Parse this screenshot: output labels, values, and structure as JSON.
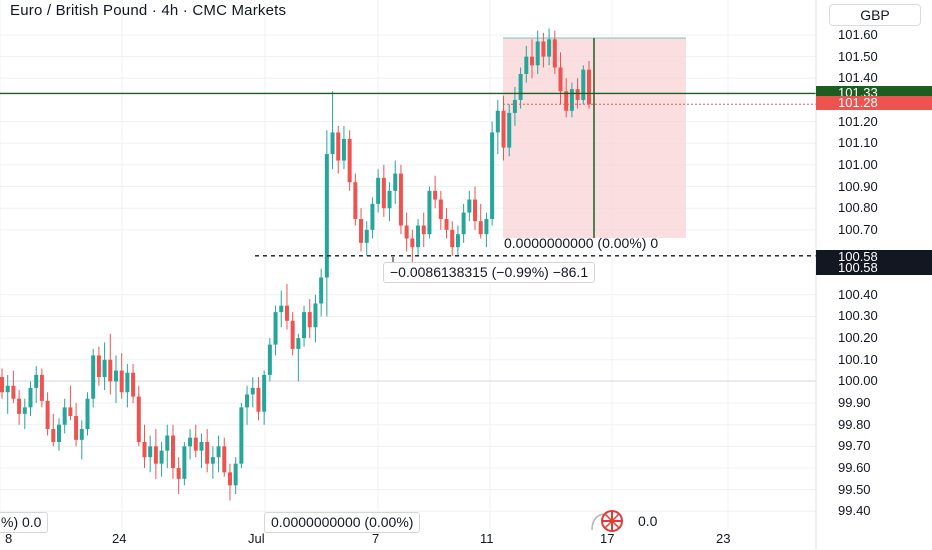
{
  "header": {
    "title": "Euro / British Pound · 4h · CMC Markets",
    "currency": "GBP"
  },
  "price_axis": {
    "ticks": [
      "101.60",
      "101.50",
      "101.40",
      "101.20",
      "101.10",
      "101.00",
      "100.90",
      "100.80",
      "100.70",
      "100.40",
      "100.30",
      "100.20",
      "100.10",
      "100.00",
      "99.90",
      "99.80",
      "99.70",
      "99.60",
      "99.50",
      "99.40"
    ],
    "tags": [
      {
        "text": "101.33",
        "color": "#1b5e20"
      },
      {
        "text": "101.28",
        "color": "#ef5350"
      },
      {
        "text": "100.58",
        "color": "#131722"
      },
      {
        "text": "100.58",
        "color": "#131722"
      }
    ]
  },
  "time_axis": {
    "ticks": [
      "8",
      "24",
      "Jul",
      "7",
      "11",
      "17",
      "23"
    ]
  },
  "measurements": {
    "position_box": "0.0000000000 (0.00%) 0",
    "price_range": "−0.0086138315 (−0.99%) −86.1",
    "bottom_center": "0.0000000000 (0.00%)",
    "bottom_right": "0.0",
    "bottom_left": "%) 0.0"
  },
  "icons": {
    "overlay": "crosshair-flag-icon"
  },
  "colors": {
    "up": "#26a69a",
    "down": "#ef5350",
    "level_line": "#1b5e20",
    "zone": "#f8d3d6"
  },
  "chart_data": {
    "type": "candlestick",
    "title": "Euro / British Pound · 4h · CMC Markets",
    "ylabel": "GBP",
    "ylim": [
      99.35,
      101.68
    ],
    "x_ticks": [
      "8",
      "24",
      "Jul",
      "7",
      "11",
      "17",
      "23"
    ],
    "levels": [
      101.33,
      101.28,
      100.58
    ],
    "candles": [
      [
        100.02,
        100.06,
        99.92,
        99.95
      ],
      [
        99.95,
        100.03,
        99.85,
        99.98
      ],
      [
        99.98,
        100.05,
        99.9,
        99.92
      ],
      [
        99.92,
        99.96,
        99.8,
        99.85
      ],
      [
        99.85,
        99.92,
        99.78,
        99.88
      ],
      [
        99.88,
        100.0,
        99.84,
        99.97
      ],
      [
        99.97,
        100.07,
        99.9,
        100.03
      ],
      [
        100.03,
        100.06,
        99.88,
        99.91
      ],
      [
        99.91,
        99.95,
        99.75,
        99.78
      ],
      [
        99.78,
        99.85,
        99.7,
        99.72
      ],
      [
        99.72,
        99.83,
        99.68,
        99.8
      ],
      [
        99.8,
        99.92,
        99.76,
        99.88
      ],
      [
        99.88,
        99.98,
        99.82,
        99.84
      ],
      [
        99.84,
        99.9,
        99.7,
        99.73
      ],
      [
        99.73,
        99.82,
        99.64,
        99.78
      ],
      [
        99.78,
        99.95,
        99.75,
        99.92
      ],
      [
        99.92,
        100.15,
        99.88,
        100.12
      ],
      [
        100.12,
        100.16,
        99.98,
        100.02
      ],
      [
        100.02,
        100.18,
        99.96,
        100.1
      ],
      [
        100.1,
        100.22,
        99.94,
        100.0
      ],
      [
        100.0,
        100.12,
        99.9,
        100.05
      ],
      [
        100.05,
        100.13,
        99.92,
        99.95
      ],
      [
        99.95,
        100.08,
        99.88,
        100.04
      ],
      [
        100.04,
        100.08,
        99.9,
        99.93
      ],
      [
        99.93,
        99.98,
        99.7,
        99.72
      ],
      [
        99.72,
        99.8,
        99.6,
        99.65
      ],
      [
        99.65,
        99.75,
        99.58,
        99.7
      ],
      [
        99.7,
        99.78,
        99.55,
        99.62
      ],
      [
        99.62,
        99.72,
        99.56,
        99.68
      ],
      [
        99.68,
        99.8,
        99.6,
        99.75
      ],
      [
        99.75,
        99.8,
        99.55,
        99.6
      ],
      [
        99.6,
        99.65,
        99.48,
        99.55
      ],
      [
        99.55,
        99.72,
        99.52,
        99.7
      ],
      [
        99.7,
        99.78,
        99.64,
        99.74
      ],
      [
        99.74,
        99.8,
        99.65,
        99.68
      ],
      [
        99.68,
        99.76,
        99.6,
        99.72
      ],
      [
        99.72,
        99.78,
        99.58,
        99.62
      ],
      [
        99.62,
        99.7,
        99.55,
        99.65
      ],
      [
        99.65,
        99.75,
        99.58,
        99.7
      ],
      [
        99.7,
        99.74,
        99.56,
        99.58
      ],
      [
        99.58,
        99.62,
        99.45,
        99.52
      ],
      [
        99.52,
        99.65,
        99.48,
        99.62
      ],
      [
        99.62,
        99.9,
        99.6,
        99.88
      ],
      [
        99.88,
        99.98,
        99.8,
        99.94
      ],
      [
        99.94,
        100.02,
        99.88,
        99.97
      ],
      [
        99.97,
        100.02,
        99.82,
        99.86
      ],
      [
        99.86,
        100.05,
        99.8,
        100.03
      ],
      [
        100.03,
        100.2,
        100.0,
        100.17
      ],
      [
        100.17,
        100.35,
        100.12,
        100.32
      ],
      [
        100.32,
        100.42,
        100.25,
        100.35
      ],
      [
        100.35,
        100.45,
        100.24,
        100.28
      ],
      [
        100.28,
        100.32,
        100.12,
        100.15
      ],
      [
        100.15,
        100.22,
        100.0,
        100.2
      ],
      [
        100.2,
        100.35,
        100.16,
        100.32
      ],
      [
        100.32,
        100.38,
        100.2,
        100.25
      ],
      [
        100.25,
        100.4,
        100.18,
        100.36
      ],
      [
        100.36,
        100.52,
        100.3,
        100.48
      ],
      [
        100.48,
        101.16,
        100.3,
        101.05
      ],
      [
        101.05,
        101.34,
        100.98,
        101.15
      ],
      [
        101.15,
        101.18,
        100.96,
        101.02
      ],
      [
        101.02,
        101.18,
        100.98,
        101.12
      ],
      [
        101.12,
        101.16,
        100.88,
        100.92
      ],
      [
        100.92,
        100.96,
        100.72,
        100.75
      ],
      [
        100.75,
        100.8,
        100.6,
        100.64
      ],
      [
        100.64,
        100.74,
        100.58,
        100.7
      ],
      [
        100.7,
        100.85,
        100.66,
        100.82
      ],
      [
        100.82,
        100.98,
        100.78,
        100.94
      ],
      [
        100.94,
        101.0,
        100.76,
        100.8
      ],
      [
        100.8,
        100.92,
        100.74,
        100.88
      ],
      [
        100.88,
        101.02,
        100.82,
        100.96
      ],
      [
        100.96,
        101.0,
        100.68,
        100.72
      ],
      [
        100.72,
        100.78,
        100.6,
        100.66
      ],
      [
        100.66,
        100.7,
        100.55,
        100.62
      ],
      [
        100.62,
        100.75,
        100.58,
        100.72
      ],
      [
        100.72,
        100.78,
        100.62,
        100.68
      ],
      [
        100.68,
        100.9,
        100.66,
        100.88
      ],
      [
        100.88,
        100.95,
        100.8,
        100.84
      ],
      [
        100.84,
        100.88,
        100.7,
        100.75
      ],
      [
        100.75,
        100.8,
        100.66,
        100.7
      ],
      [
        100.7,
        100.74,
        100.58,
        100.62
      ],
      [
        100.62,
        100.72,
        100.58,
        100.68
      ],
      [
        100.68,
        100.82,
        100.64,
        100.78
      ],
      [
        100.78,
        100.88,
        100.74,
        100.84
      ],
      [
        100.84,
        100.9,
        100.7,
        100.74
      ],
      [
        100.74,
        100.82,
        100.66,
        100.68
      ],
      [
        100.68,
        100.78,
        100.62,
        100.75
      ],
      [
        100.75,
        101.2,
        100.72,
        101.15
      ],
      [
        101.15,
        101.3,
        101.05,
        101.25
      ],
      [
        101.25,
        101.32,
        101.02,
        101.08
      ],
      [
        101.08,
        101.28,
        101.04,
        101.24
      ],
      [
        101.24,
        101.36,
        101.18,
        101.3
      ],
      [
        101.3,
        101.45,
        101.26,
        101.42
      ],
      [
        101.42,
        101.55,
        101.38,
        101.5
      ],
      [
        101.5,
        101.58,
        101.4,
        101.46
      ],
      [
        101.46,
        101.62,
        101.42,
        101.57
      ],
      [
        101.57,
        101.61,
        101.45,
        101.5
      ],
      [
        101.5,
        101.63,
        101.46,
        101.58
      ],
      [
        101.58,
        101.62,
        101.42,
        101.45
      ],
      [
        101.45,
        101.52,
        101.28,
        101.34
      ],
      [
        101.34,
        101.4,
        101.22,
        101.25
      ],
      [
        101.25,
        101.38,
        101.22,
        101.35
      ],
      [
        101.35,
        101.4,
        101.26,
        101.3
      ],
      [
        101.3,
        101.46,
        101.28,
        101.44
      ],
      [
        101.44,
        101.48,
        101.26,
        101.28
      ]
    ]
  }
}
